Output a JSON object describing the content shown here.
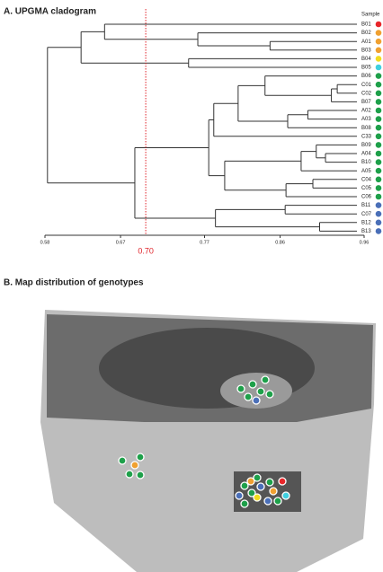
{
  "chart_data": {
    "type": "dendrogram",
    "title": "A. UPGMA cladogram",
    "legend_title": "Sample",
    "xlim": [
      0.58,
      0.96
    ],
    "xticks": [
      0.58,
      0.67,
      0.77,
      0.86,
      0.96
    ],
    "threshold": {
      "value": 0.7,
      "label": "0.70"
    },
    "threshold_color": "#e0232a",
    "tree": {
      "height": 0.583,
      "children": [
        {
          "height": 0.623,
          "children": [
            {
              "height": 0.651,
              "children": [
                {
                  "label": "B01",
                  "color": "#e8262a"
                },
                {
                  "height": 0.762,
                  "children": [
                    {
                      "label": "B02",
                      "color": "#f0a030"
                    },
                    {
                      "height": 0.848,
                      "children": [
                        {
                          "label": "A01",
                          "color": "#f0a030"
                        },
                        {
                          "label": "B03",
                          "color": "#f0a030"
                        }
                      ]
                    }
                  ]
                }
              ]
            },
            {
              "height": 0.751,
              "children": [
                {
                  "label": "B04",
                  "color": "#f2dc1e"
                },
                {
                  "label": "B05",
                  "color": "#3fd0e0"
                }
              ]
            }
          ]
        },
        {
          "height": 0.687,
          "children": [
            {
              "height": 0.775,
              "children": [
                {
                  "height": 0.781,
                  "children": [
                    {
                      "height": 0.81,
                      "children": [
                        {
                          "height": 0.842,
                          "children": [
                            {
                              "label": "B06",
                              "color": "#1ea04a"
                            },
                            {
                              "height": 0.921,
                              "children": [
                                {
                                  "height": 0.928,
                                  "children": [
                                    {
                                      "label": "C01",
                                      "color": "#1ea04a"
                                    },
                                    {
                                      "label": "C02",
                                      "color": "#1ea04a"
                                    }
                                  ]
                                },
                                {
                                  "label": "B07",
                                  "color": "#1ea04a"
                                }
                              ]
                            }
                          ]
                        },
                        {
                          "height": 0.869,
                          "children": [
                            {
                              "height": 0.893,
                              "children": [
                                {
                                  "label": "A02",
                                  "color": "#1ea04a"
                                },
                                {
                                  "label": "A03",
                                  "color": "#1ea04a"
                                }
                              ]
                            },
                            {
                              "label": "B08",
                              "color": "#1ea04a"
                            }
                          ]
                        }
                      ]
                    },
                    {
                      "label": "C33",
                      "color": "#1ea04a"
                    }
                  ]
                },
                {
                  "height": 0.794,
                  "children": [
                    {
                      "height": 0.885,
                      "children": [
                        {
                          "height": 0.903,
                          "children": [
                            {
                              "label": "B09",
                              "color": "#1ea04a"
                            },
                            {
                              "height": 0.914,
                              "children": [
                                {
                                  "label": "A04",
                                  "color": "#1ea04a"
                                },
                                {
                                  "label": "B10",
                                  "color": "#1ea04a"
                                }
                              ]
                            }
                          ]
                        },
                        {
                          "label": "A05",
                          "color": "#1ea04a"
                        }
                      ]
                    },
                    {
                      "height": 0.867,
                      "children": [
                        {
                          "height": 0.899,
                          "children": [
                            {
                              "label": "C04",
                              "color": "#1ea04a"
                            },
                            {
                              "label": "C05",
                              "color": "#1ea04a"
                            }
                          ]
                        },
                        {
                          "label": "C06",
                          "color": "#1ea04a"
                        }
                      ]
                    }
                  ]
                }
              ]
            },
            {
              "height": 0.783,
              "children": [
                {
                  "height": 0.866,
                  "children": [
                    {
                      "label": "B11",
                      "color": "#4a6fb8"
                    },
                    {
                      "label": "C07",
                      "color": "#4a6fb8"
                    }
                  ]
                },
                {
                  "height": 0.907,
                  "children": [
                    {
                      "label": "B12",
                      "color": "#4a6fb8"
                    },
                    {
                      "label": "B13",
                      "color": "#4a6fb8"
                    }
                  ]
                }
              ]
            }
          ]
        }
      ]
    }
  },
  "panel_b": {
    "title": "B. Map distribution of genotypes"
  }
}
